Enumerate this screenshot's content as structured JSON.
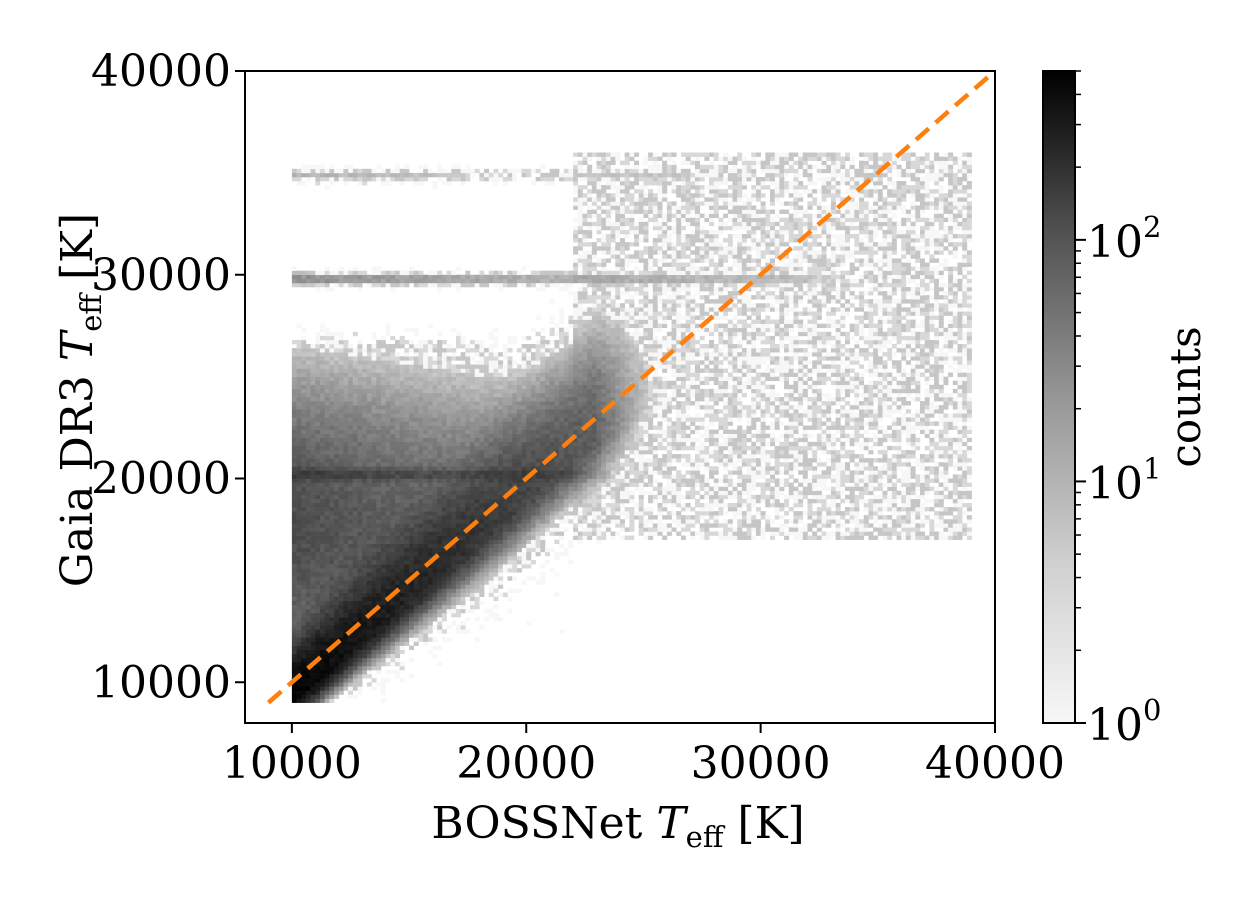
{
  "chart_data": {
    "type": "heatmap",
    "xlabel": {
      "prefix": "BOSSNet ",
      "var": "T",
      "sub": "eff",
      "suffix": " [K]"
    },
    "ylabel": {
      "prefix": "Gaia DR3 ",
      "var": "T",
      "sub": "eff",
      "suffix": " [K]"
    },
    "xlim": [
      8000,
      40000
    ],
    "ylim": [
      8000,
      40000
    ],
    "x_ticks": [
      {
        "value": 10000,
        "label": "10000"
      },
      {
        "value": 20000,
        "label": "20000"
      },
      {
        "value": 30000,
        "label": "30000"
      },
      {
        "value": 40000,
        "label": "40000"
      }
    ],
    "y_ticks": [
      {
        "value": 10000,
        "label": "10000"
      },
      {
        "value": 20000,
        "label": "20000"
      },
      {
        "value": 30000,
        "label": "30000"
      },
      {
        "value": 40000,
        "label": "40000"
      }
    ],
    "bin_size": 200,
    "min_value": 9000,
    "reference_line": {
      "style": "dashed",
      "color": "#ff7f0e",
      "x": [
        9000,
        40000
      ],
      "y": [
        9000,
        40000
      ]
    },
    "colorbar": {
      "label": "counts",
      "scale": "log",
      "range": [
        1,
        500
      ],
      "ticks": [
        {
          "value": 1,
          "base": "10",
          "exp": "0"
        },
        {
          "value": 10,
          "base": "10",
          "exp": "1"
        },
        {
          "value": 100,
          "base": "10",
          "exp": "2"
        }
      ]
    },
    "density_components": [
      {
        "kind": "sequence",
        "x": [
          10000,
          23000
        ],
        "offset": 800,
        "peak": 500,
        "decay": 4500
      },
      {
        "kind": "broad-cloud",
        "x": [
          10000,
          24000
        ],
        "y": [
          9000,
          27500
        ],
        "peak": 60
      },
      {
        "kind": "horizontal-stripe",
        "y": 20200,
        "x": [
          10000,
          22000
        ],
        "peak": 60
      },
      {
        "kind": "horizontal-stripe",
        "y": 29800,
        "x": [
          10000,
          32000
        ],
        "peak": 12
      },
      {
        "kind": "horizontal-stripe",
        "y": 34900,
        "x": [
          10000,
          30000
        ],
        "peak": 5
      },
      {
        "kind": "sparse-scatter",
        "x": [
          22000,
          39000
        ],
        "y": [
          17000,
          36000
        ],
        "peak": 3
      }
    ]
  }
}
